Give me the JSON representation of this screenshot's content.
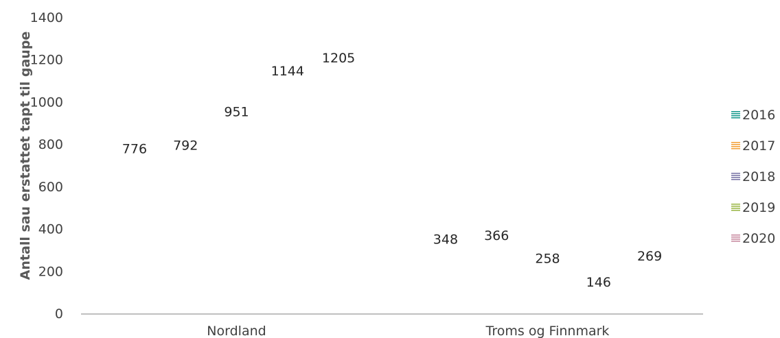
{
  "chart_data": {
    "type": "bar",
    "categories": [
      "Nordland",
      "Troms og Finnmark"
    ],
    "series": [
      {
        "name": "2016",
        "values": [
          776,
          348
        ],
        "color": "#1a9b8f"
      },
      {
        "name": "2017",
        "values": [
          792,
          366
        ],
        "color": "#f4a33e"
      },
      {
        "name": "2018",
        "values": [
          951,
          258
        ],
        "color": "#7b77a8"
      },
      {
        "name": "2019",
        "values": [
          1144,
          146
        ],
        "color": "#9cb84a"
      },
      {
        "name": "2020",
        "values": [
          1205,
          269
        ],
        "color": "#c88aa0"
      }
    ],
    "ylabel": "Antall sau erstattet tapt til gaupe",
    "ylim": [
      0,
      1400
    ],
    "yticks": [
      0,
      200,
      400,
      600,
      800,
      1000,
      1200,
      1400
    ],
    "legend": "right",
    "grid": false,
    "axis_color": "#bfbfbf"
  }
}
